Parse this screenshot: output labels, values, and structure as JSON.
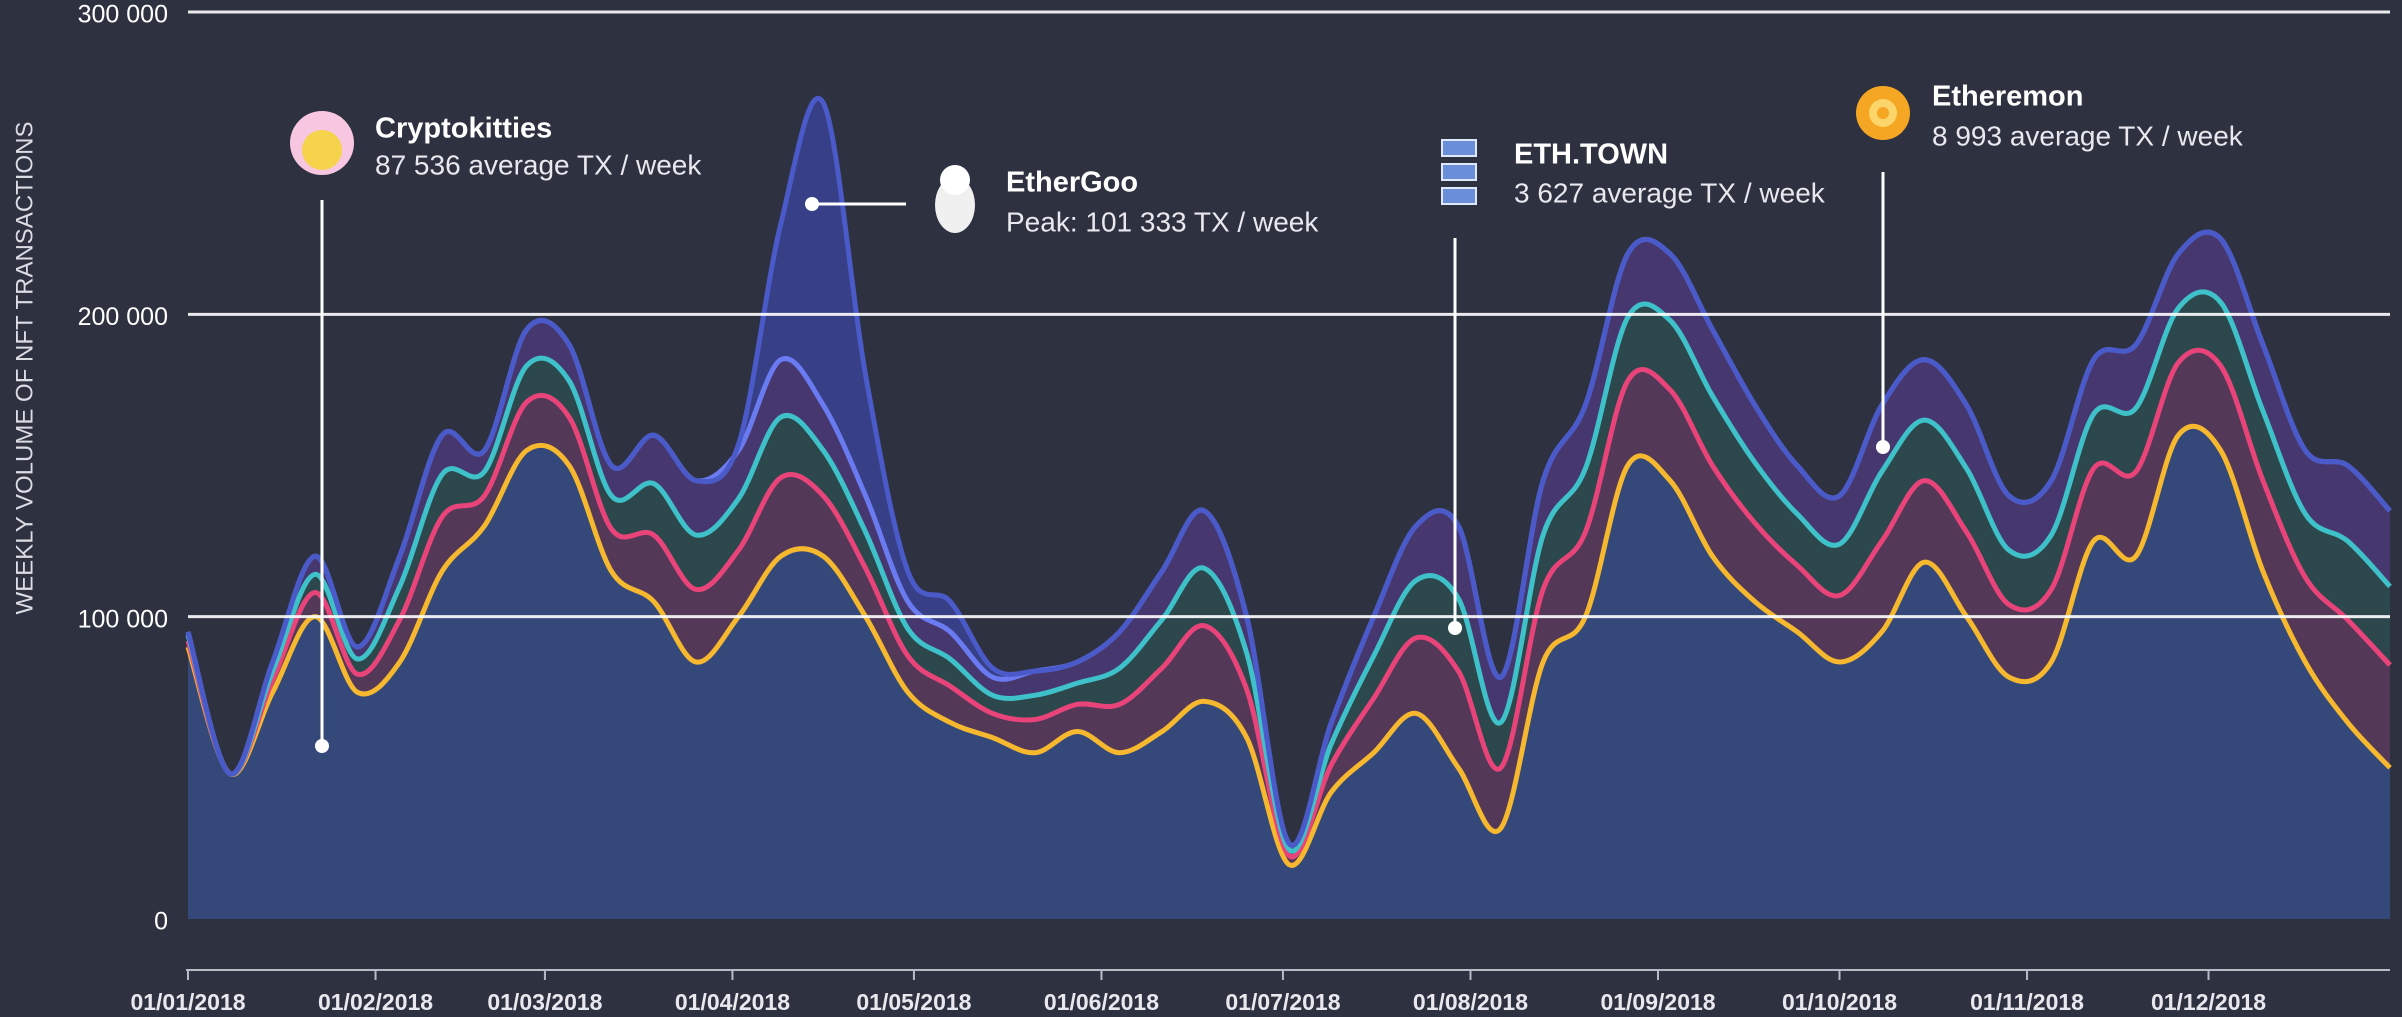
{
  "chart_data": {
    "type": "stacked_area",
    "ylabel": "WEEKLY VOLUME OF NFT TRANSACTIONS",
    "x": [
      "01/01/2018",
      "08/01/2018",
      "15/01/2018",
      "22/01/2018",
      "29/01/2018",
      "05/02/2018",
      "12/02/2018",
      "19/02/2018",
      "26/02/2018",
      "05/03/2018",
      "12/03/2018",
      "19/03/2018",
      "26/03/2018",
      "02/04/2018",
      "09/04/2018",
      "16/04/2018",
      "23/04/2018",
      "30/04/2018",
      "07/05/2018",
      "14/05/2018",
      "21/05/2018",
      "28/05/2018",
      "04/06/2018",
      "11/06/2018",
      "18/06/2018",
      "25/06/2018",
      "02/07/2018",
      "09/07/2018",
      "16/07/2018",
      "23/07/2018",
      "30/07/2018",
      "06/08/2018",
      "13/08/2018",
      "20/08/2018",
      "27/08/2018",
      "03/09/2018",
      "10/09/2018",
      "17/09/2018",
      "24/09/2018",
      "01/10/2018",
      "08/10/2018",
      "15/10/2018",
      "22/10/2018",
      "29/10/2018",
      "05/11/2018",
      "12/11/2018",
      "19/11/2018",
      "26/11/2018",
      "03/12/2018",
      "10/12/2018",
      "17/12/2018",
      "24/12/2018",
      "31/12/2018"
    ],
    "xlim": [
      "01/01/2018",
      "31/12/2018"
    ],
    "xticks": [
      "01/01/2018",
      "01/02/2018",
      "01/03/2018",
      "01/04/2018",
      "01/05/2018",
      "01/06/2018",
      "01/07/2018",
      "01/08/2018",
      "01/09/2018",
      "01/10/2018",
      "01/11/2018",
      "01/12/2018"
    ],
    "ylim": [
      0,
      300000
    ],
    "yticks": [
      {
        "value": 0,
        "label": "0"
      },
      {
        "value": 100000,
        "label": "100 000"
      },
      {
        "value": 200000,
        "label": "200 000"
      },
      {
        "value": 300000,
        "label": "300 000"
      }
    ],
    "grid": true,
    "series": [
      {
        "color": "#34497a",
        "line": "#f5b82e",
        "values": [
          90000,
          48000,
          75000,
          100000,
          75000,
          85000,
          115000,
          130000,
          155000,
          150000,
          115000,
          105000,
          85000,
          100000,
          120000,
          120000,
          100000,
          75000,
          65000,
          60000,
          55000,
          62000,
          55000,
          62000,
          72000,
          60000,
          18000,
          42000,
          55000,
          68000,
          50000,
          30000,
          85000,
          100000,
          150000,
          145000,
          120000,
          105000,
          95000,
          85000,
          95000,
          118000,
          100000,
          80000,
          85000,
          125000,
          120000,
          160000,
          155000,
          115000,
          85000,
          65000,
          50000
        ]
      },
      {
        "color": "#5b3a5c",
        "line": "#e8447a",
        "values": [
          2000,
          0,
          4000,
          8000,
          6000,
          14000,
          18000,
          10000,
          16000,
          16000,
          14000,
          22000,
          24000,
          22000,
          26000,
          20000,
          16000,
          12000,
          12000,
          8000,
          11000,
          9000,
          16000,
          21000,
          25000,
          16000,
          3000,
          9000,
          18000,
          25000,
          32000,
          20000,
          24000,
          28000,
          28000,
          30000,
          30000,
          26000,
          22000,
          22000,
          30000,
          27000,
          28000,
          24000,
          24000,
          24000,
          28000,
          24000,
          28000,
          30000,
          28000,
          34000,
          34000
        ]
      },
      {
        "color": "#2c4c50",
        "line": "#3fc1c9",
        "values": [
          2000,
          0,
          3000,
          6000,
          5000,
          11000,
          14000,
          8000,
          12000,
          12000,
          11000,
          17000,
          18000,
          17000,
          20000,
          15000,
          12000,
          9000,
          9000,
          6000,
          8000,
          7000,
          12000,
          16000,
          19000,
          12000,
          2000,
          7000,
          14000,
          19000,
          24000,
          15000,
          18000,
          21000,
          21000,
          23000,
          23000,
          20000,
          17000,
          17000,
          23000,
          20000,
          21000,
          18000,
          18000,
          18000,
          21000,
          18000,
          21000,
          23000,
          21000,
          26000,
          26000
        ]
      },
      {
        "color": "#4a3a78",
        "line": "#6a7af0",
        "values": [
          1000,
          0,
          3000,
          6000,
          4000,
          10000,
          13000,
          7000,
          12000,
          12000,
          10000,
          16000,
          18000,
          16000,
          19000,
          15000,
          12000,
          9000,
          9000,
          6000,
          8000,
          7000,
          12000,
          16000,
          19000,
          12000,
          2000,
          7000,
          13000,
          18000,
          24000,
          15000,
          18000,
          21000,
          21000,
          22000,
          22000,
          19000,
          16000,
          16000,
          22000,
          20000,
          21000,
          18000,
          18000,
          18000,
          21000,
          18000,
          21000,
          22000,
          21000,
          25000,
          25000
        ]
      },
      {
        "color": "#384394",
        "line": "#4a5ac8",
        "values": [
          0,
          0,
          0,
          0,
          0,
          0,
          0,
          0,
          0,
          0,
          0,
          0,
          0,
          2000,
          45000,
          100000,
          40000,
          10000,
          10000,
          3000,
          0,
          0,
          0,
          0,
          0,
          0,
          0,
          0,
          0,
          0,
          0,
          0,
          0,
          0,
          0,
          0,
          0,
          0,
          0,
          0,
          0,
          0,
          0,
          0,
          0,
          0,
          0,
          0,
          0,
          0,
          0,
          0,
          0
        ]
      }
    ],
    "annotations": [
      {
        "title": "Cryptokitties",
        "text": "87 536 average TX / week"
      },
      {
        "title": "EtherGoo",
        "text": "Peak: 101 333 TX / week"
      },
      {
        "title": "ETH.TOWN",
        "text": "3 627 average TX / week"
      },
      {
        "title": "Etheremon",
        "text": "8 993 average TX / week"
      }
    ]
  }
}
